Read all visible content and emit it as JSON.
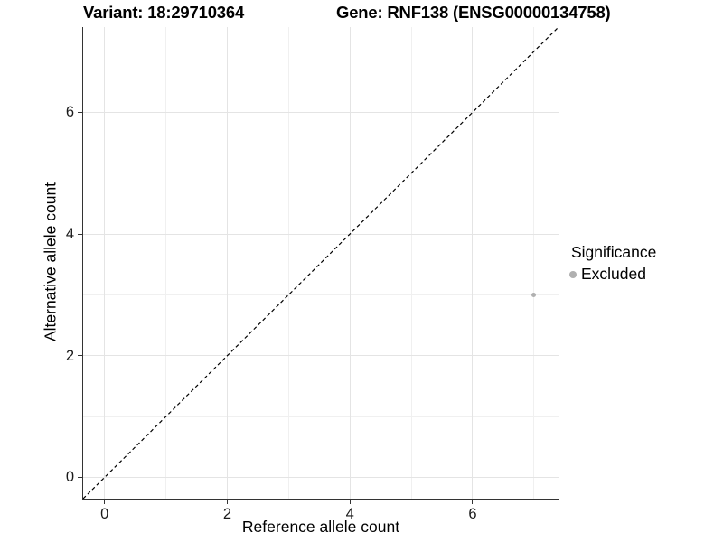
{
  "chart_data": {
    "type": "scatter",
    "title_left": "Variant: 18:29710364",
    "title_right": "Gene: RNF138 (ENSG00000134758)",
    "xlabel": "Reference allele count",
    "ylabel": "Alternative allele count",
    "xlim": [
      -0.35,
      7.4
    ],
    "ylim": [
      -0.35,
      7.4
    ],
    "xticks": [
      0,
      2,
      4,
      6
    ],
    "yticks": [
      0,
      2,
      4,
      6
    ],
    "minor_xticks": [
      1,
      3,
      5,
      7
    ],
    "minor_yticks": [
      1,
      3,
      5,
      7
    ],
    "grid": true,
    "legend_position": "right",
    "identity_line": {
      "style": "dashed",
      "color": "#000000",
      "slope": 1,
      "intercept": 0
    },
    "series": [
      {
        "name": "Excluded",
        "color": "#b0b0b0",
        "points": [
          {
            "x": 7,
            "y": 3
          }
        ]
      }
    ],
    "legend": {
      "title": "Significance",
      "entries": [
        {
          "label": "Excluded",
          "color": "#b0b0b0",
          "marker": "circle-icon"
        }
      ]
    }
  },
  "colors": {
    "background": "#ffffff",
    "axis_line": "#333333",
    "grid_major": "#e4e4e4",
    "grid_minor": "#f0f0f0",
    "tick_text": "#1a1a1a",
    "text": "#000000",
    "point": "#b0b0b0"
  }
}
